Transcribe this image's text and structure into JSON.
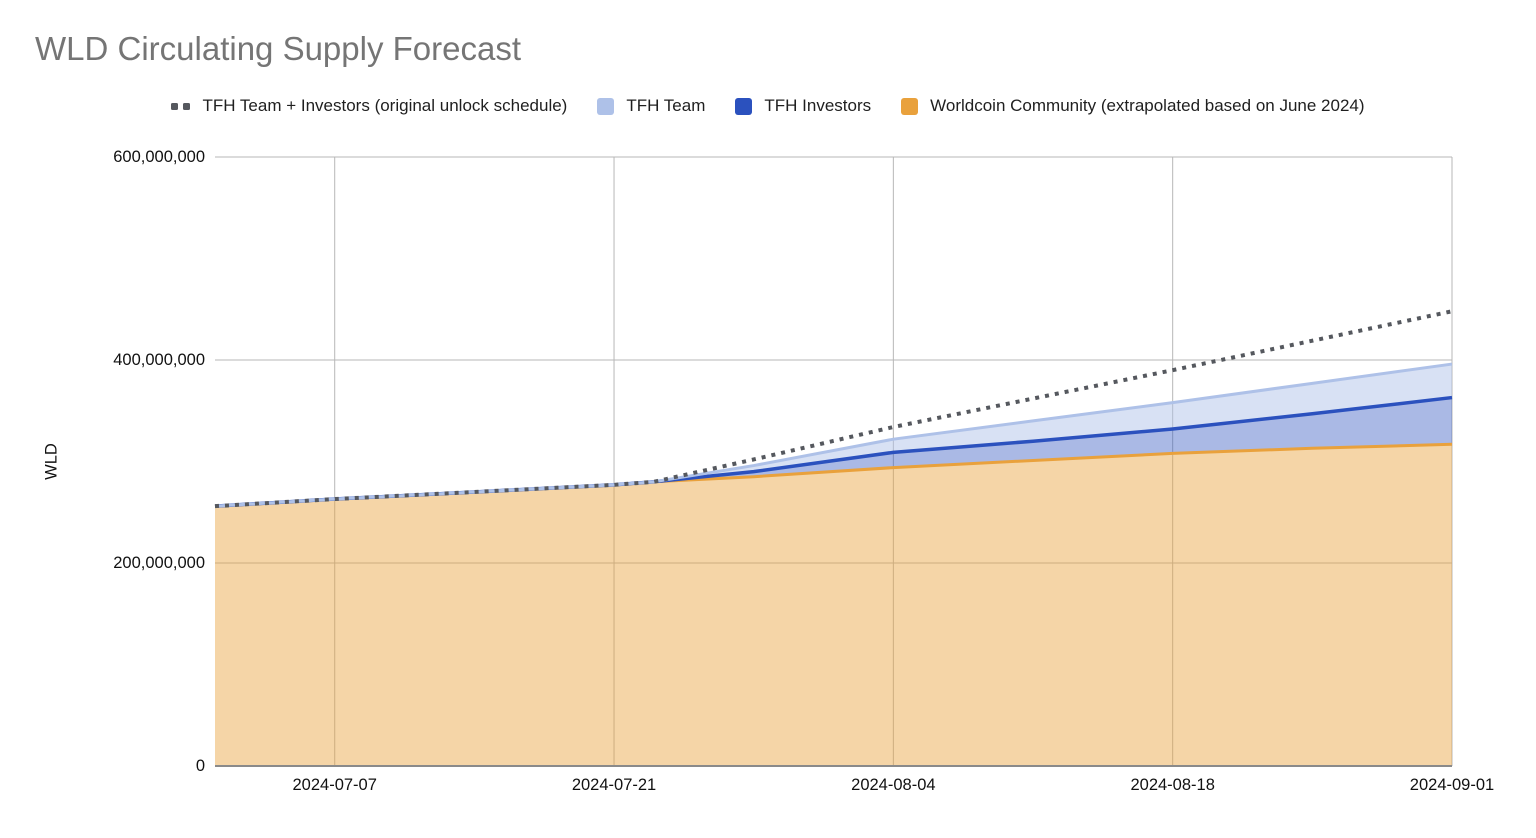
{
  "title": "WLD Circulating Supply Forecast",
  "legend": {
    "items": [
      {
        "label": "TFH Team + Investors (original unlock schedule)",
        "swatch": "dotted-line",
        "color": "#55585e"
      },
      {
        "label": "TFH Team",
        "swatch": "square",
        "color": "#aec1e8"
      },
      {
        "label": "TFH Investors",
        "swatch": "square",
        "color": "#2b51be"
      },
      {
        "label": "Worldcoin Community (extrapolated based on June 2024)",
        "swatch": "square",
        "color": "#e9a13c"
      }
    ]
  },
  "chart_data": {
    "type": "area",
    "stacked": true,
    "title": "WLD Circulating Supply Forecast",
    "xlabel": "",
    "ylabel": "WLD",
    "values_unit": "millions of WLD",
    "ylim_millions": [
      0,
      600
    ],
    "grid": true,
    "legend_position": "top",
    "x_dates": [
      "2024-07-01",
      "2024-07-07",
      "2024-07-14",
      "2024-07-21",
      "2024-07-23",
      "2024-07-28",
      "2024-08-04",
      "2024-08-11",
      "2024-08-18",
      "2024-08-25",
      "2024-09-01"
    ],
    "x_days": [
      0,
      6,
      13,
      20,
      22,
      27,
      34,
      41,
      48,
      55,
      62
    ],
    "series": [
      {
        "name": "Worldcoin Community (extrapolated based on June 2024)",
        "role": "stacked-area-bottom",
        "color": "#e9a13c",
        "fill_opacity": 0.45,
        "values_millions": [
          256,
          263,
          270,
          277,
          280,
          285,
          294,
          301,
          308,
          313,
          317
        ]
      },
      {
        "name": "TFH Investors",
        "role": "stacked-area-middle",
        "color": "#2b51be",
        "fill_opacity": 0.4,
        "values_millions": [
          0,
          0,
          0,
          0,
          0,
          5,
          15,
          19,
          24,
          34,
          46
        ]
      },
      {
        "name": "TFH Team",
        "role": "stacked-area-top",
        "color": "#aec1e8",
        "fill_opacity": 0.48,
        "values_millions": [
          0,
          0,
          0,
          0,
          0,
          6,
          13,
          20,
          26,
          30,
          33
        ]
      },
      {
        "name": "TFH Team + Investors (original unlock schedule)",
        "role": "dotted-line-total",
        "color": "#55585e",
        "values_millions": [
          256,
          263,
          270,
          277,
          280,
          302,
          334,
          362,
          390,
          419,
          448
        ]
      }
    ],
    "x_axis": {
      "ticks": [
        {
          "label": "2024-07-07",
          "day": 6
        },
        {
          "label": "2024-07-21",
          "day": 20
        },
        {
          "label": "2024-08-04",
          "day": 34
        },
        {
          "label": "2024-08-18",
          "day": 48
        },
        {
          "label": "2024-09-01",
          "day": 62
        }
      ]
    },
    "y_axis": {
      "title": "WLD",
      "ticks": [
        {
          "label": "0",
          "value_millions": 0
        },
        {
          "label": "200,000,000",
          "value_millions": 200
        },
        {
          "label": "400,000,000",
          "value_millions": 400
        },
        {
          "label": "600,000,000",
          "value_millions": 600
        }
      ]
    },
    "colors": {
      "gridline": "#b7b7b7",
      "zero_axis_line": "#8a8a8a",
      "title_text": "#757575",
      "tick_text": "#111111"
    }
  }
}
